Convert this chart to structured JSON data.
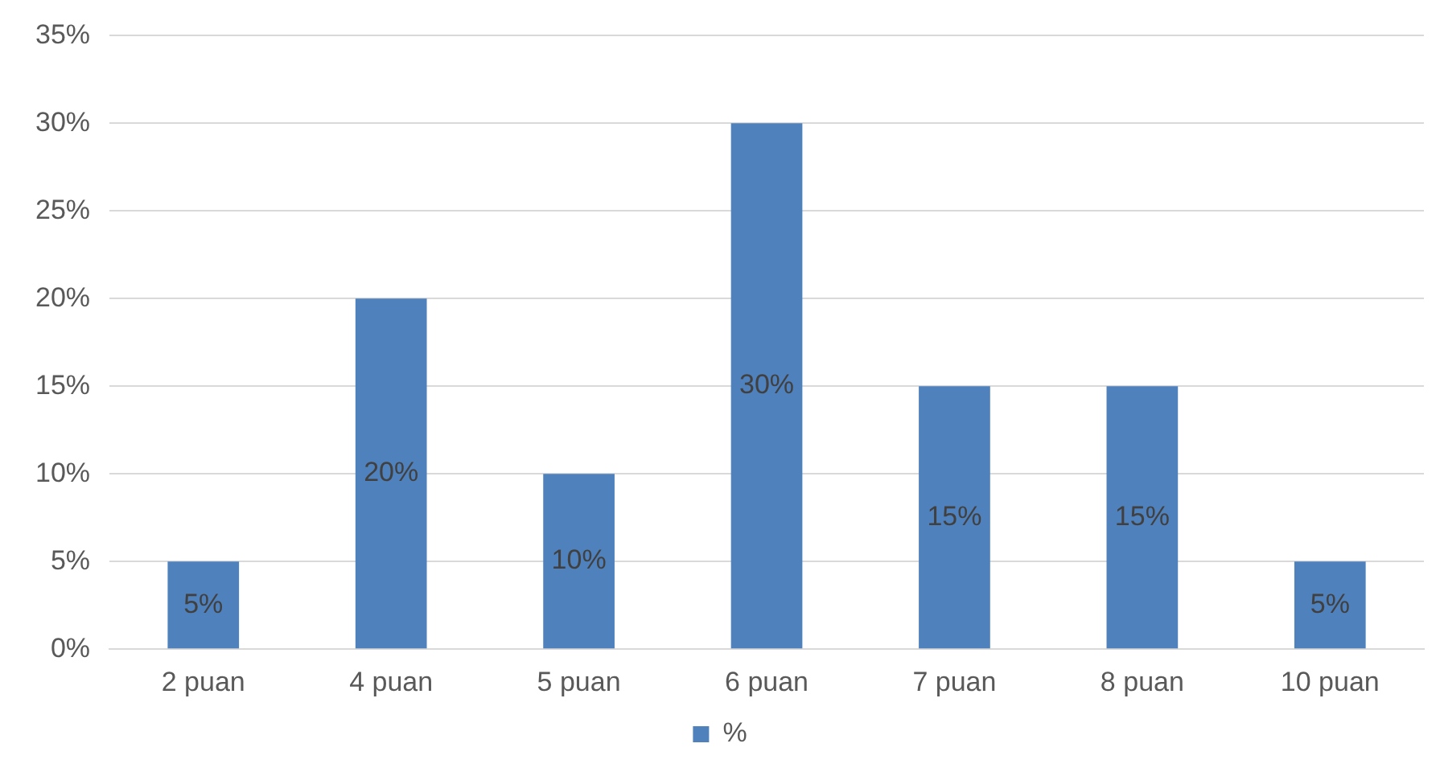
{
  "chart_data": {
    "type": "bar",
    "categories": [
      "2 puan",
      "4 puan",
      "5 puan",
      "6 puan",
      "7 puan",
      "8 puan",
      "10 puan"
    ],
    "series": [
      {
        "name": "%",
        "color": "#4f81bd",
        "values": [
          5,
          20,
          10,
          30,
          15,
          15,
          5
        ],
        "value_labels": [
          "5%",
          "20%",
          "10%",
          "30%",
          "15%",
          "15%",
          "5%"
        ]
      }
    ],
    "ylim": [
      0,
      35
    ],
    "yticks": [
      {
        "value": 0,
        "label": "0%"
      },
      {
        "value": 5,
        "label": "5%"
      },
      {
        "value": 10,
        "label": "10%"
      },
      {
        "value": 15,
        "label": "15%"
      },
      {
        "value": 20,
        "label": "20%"
      },
      {
        "value": 25,
        "label": "25%"
      },
      {
        "value": 30,
        "label": "30%"
      },
      {
        "value": 35,
        "label": "35%"
      }
    ],
    "grid": "y",
    "legend": "bottom"
  }
}
